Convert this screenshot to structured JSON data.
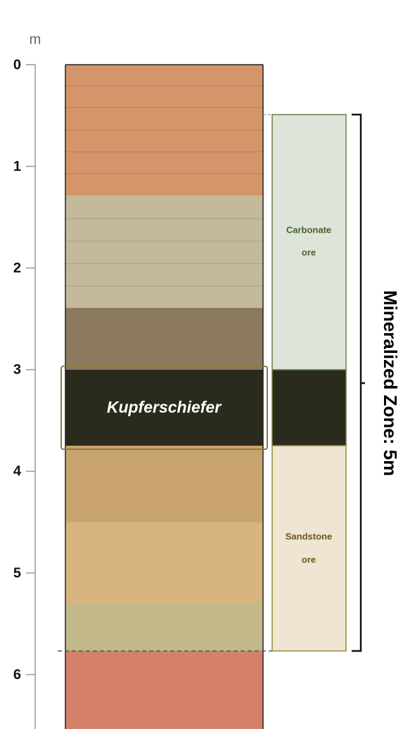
{
  "axis": {
    "unit": "m",
    "ticks": [
      "0",
      "1",
      "2",
      "3",
      "4",
      "5",
      "6"
    ]
  },
  "column": {
    "label": "Kupferschiefer"
  },
  "ore_zones": {
    "carbonate": [
      "Carbonate",
      "ore"
    ],
    "sandstone": [
      "Sandstone",
      "ore"
    ]
  },
  "bracket_label": "Mineralized Zone: 5m"
}
